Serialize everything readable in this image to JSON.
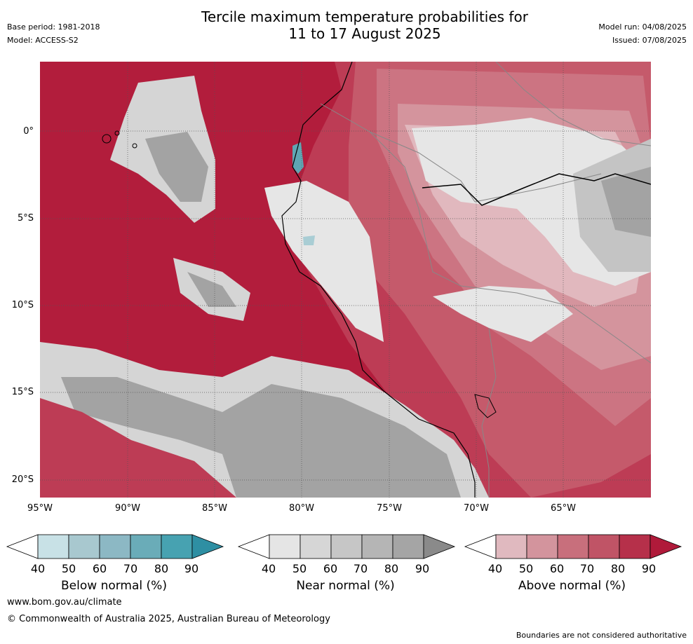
{
  "header": {
    "title_line1": "Tercile maximum temperature probabilities for",
    "title_line2": "11 to 17 August 2025",
    "base_period": "Base period: 1981-2018",
    "model": "Model: ACCESS-S2",
    "model_run": "Model run: 04/08/2025",
    "issued": "Issued: 07/08/2025"
  },
  "axes": {
    "lat_labels": [
      "0°",
      "5°S",
      "10°S",
      "15°S",
      "20°S"
    ],
    "lon_labels": [
      "95°W",
      "90°W",
      "85°W",
      "80°W",
      "75°W",
      "70°W",
      "65°W"
    ]
  },
  "colorbars": [
    {
      "label": "Below normal (%)",
      "ticks": [
        "40",
        "50",
        "60",
        "70",
        "80",
        "90"
      ],
      "colors": [
        "#ffffff",
        "#c8e1e6",
        "#a8c8cf",
        "#8cb8c4",
        "#6aacb8",
        "#47a2b1",
        "#2e8fa3"
      ]
    },
    {
      "label": "Near normal (%)",
      "ticks": [
        "40",
        "50",
        "60",
        "70",
        "80",
        "90"
      ],
      "colors": [
        "#ffffff",
        "#e5e5e5",
        "#d6d6d6",
        "#c6c6c6",
        "#b5b5b5",
        "#a5a5a5",
        "#8a8a8a"
      ]
    },
    {
      "label": "Above normal (%)",
      "ticks": [
        "40",
        "50",
        "60",
        "70",
        "80",
        "90"
      ],
      "colors": [
        "#ffffff",
        "#e0b9bf",
        "#d3949d",
        "#c86f7c",
        "#c05466",
        "#b6304a",
        "#b01a3a"
      ]
    }
  ],
  "map_colors": {
    "above_90": "#b21d3c",
    "above_80": "#bd3c55",
    "above_70": "#c55a6b",
    "above_60": "#cc7482",
    "above_50": "#d4949d",
    "above_40": "#e1b8be",
    "near_40": "#e6e6e6",
    "near_50": "#d5d5d5",
    "near_60": "#c4c4c4",
    "near_70": "#b3b3b3",
    "near_80": "#a3a3a3",
    "near_90": "#8c8c8c",
    "below_50": "#a9cdd4",
    "below_70": "#5fa6b3"
  },
  "footer": {
    "url": "www.bom.gov.au/climate",
    "copyright": "© Commonwealth of Australia 2025, Australian Bureau of Meteorology",
    "note": "Boundaries are not considered authoritative"
  }
}
